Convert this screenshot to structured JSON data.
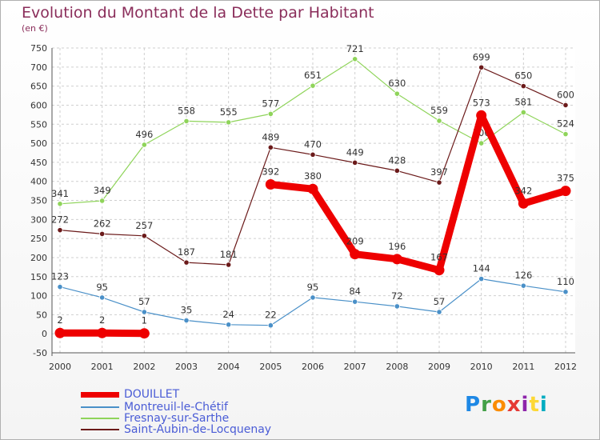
{
  "header": {
    "title": "Evolution du Montant de la Dette par Habitant",
    "subtitle": "(en €)"
  },
  "logo": {
    "text": "Proxiti",
    "colors": [
      "#1e88e5",
      "#43a047",
      "#fb8c00",
      "#e53935",
      "#8e24aa",
      "#fdd835",
      "#00acc1"
    ]
  },
  "chart_data": {
    "type": "line",
    "x": [
      "2000",
      "2001",
      "2002",
      "2003",
      "2004",
      "2005",
      "2006",
      "2007",
      "2008",
      "2009",
      "2010",
      "2011",
      "2012"
    ],
    "ylim": [
      -50,
      750
    ],
    "yticks": [
      -50,
      0,
      50,
      100,
      150,
      200,
      250,
      300,
      350,
      400,
      450,
      500,
      550,
      600,
      650,
      700,
      750
    ],
    "grid": true,
    "legend_position": "bottom-left",
    "series": [
      {
        "name": "DOUILLET",
        "color": "#ee0000",
        "values": [
          2,
          2,
          1,
          null,
          null,
          392,
          380,
          209,
          196,
          167,
          573,
          342,
          375
        ]
      },
      {
        "name": "Montreuil-le-Chétif",
        "color": "#4a90c8",
        "values": [
          123,
          95,
          57,
          35,
          24,
          22,
          95,
          84,
          72,
          57,
          144,
          126,
          110
        ]
      },
      {
        "name": "Fresnay-sur-Sarthe",
        "color": "#8fd45a",
        "values": [
          341,
          349,
          496,
          558,
          555,
          577,
          651,
          721,
          630,
          559,
          500,
          581,
          524
        ]
      },
      {
        "name": "Saint-Aubin-de-Locquenay",
        "color": "#6b1a1a",
        "values": [
          272,
          262,
          257,
          187,
          181,
          489,
          470,
          449,
          428,
          397,
          699,
          650,
          600
        ]
      }
    ]
  }
}
